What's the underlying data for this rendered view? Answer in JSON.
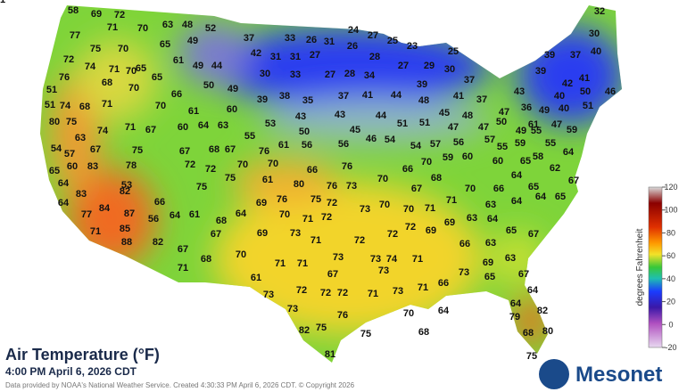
{
  "title": "Air Temperature (°F)",
  "subtitle": "4:00 PM April 6, 2026 CDT",
  "credit": "Data provided by NOAA's National Weather Service. Created 4:30:33 PM April 6, 2026 CDT. © Copyright 2026",
  "logo": "Mesonet",
  "legend": {
    "label": "degrees Fahrenheit",
    "ticks": [
      120,
      100,
      80,
      60,
      40,
      20,
      0,
      -20
    ]
  },
  "stations": [
    58,
    69,
    72,
    63,
    48,
    52,
    24,
    27,
    32,
    77,
    71,
    70,
    65,
    49,
    37,
    33,
    26,
    31,
    26,
    25,
    23,
    30,
    75,
    70,
    72,
    42,
    31,
    31,
    27,
    28,
    25,
    39,
    37,
    40,
    74,
    71,
    65,
    61,
    49,
    44,
    30,
    33,
    27,
    28,
    27,
    29,
    30,
    39,
    41,
    76,
    70,
    65,
    50,
    49,
    34,
    37,
    42,
    39,
    41,
    37,
    51,
    68,
    70,
    66,
    39,
    38,
    35,
    37,
    41,
    44,
    48,
    43,
    40,
    50,
    46,
    51,
    74,
    68,
    71,
    70,
    61,
    60,
    43,
    43,
    44,
    45,
    48,
    47,
    36,
    49,
    40,
    51,
    80,
    75,
    74,
    71,
    67,
    60,
    64,
    63,
    53,
    45,
    51,
    51,
    47,
    47,
    50,
    49,
    55,
    47,
    59,
    63,
    55,
    50,
    46,
    54,
    56,
    57,
    54,
    67,
    75,
    67,
    68,
    67,
    61,
    56,
    56,
    54,
    57,
    55,
    59,
    55,
    61,
    57,
    76,
    70,
    59,
    60,
    60,
    65,
    64,
    58,
    65,
    60,
    83,
    78,
    72,
    72,
    70,
    70,
    66,
    76,
    66,
    64,
    62,
    64,
    75,
    61,
    80,
    76,
    73,
    70,
    68,
    67,
    53,
    75,
    67,
    70,
    66,
    65,
    64,
    83,
    82,
    66,
    69,
    76,
    75,
    72,
    70,
    70,
    71,
    71,
    63,
    64,
    64,
    65,
    77,
    84,
    87,
    56,
    64,
    61,
    68,
    64,
    70,
    71,
    72,
    73,
    69,
    63,
    64,
    65,
    71,
    85,
    67,
    69,
    73,
    71,
    72,
    72,
    72,
    69,
    66,
    63,
    67,
    88,
    82,
    67,
    70,
    73,
    71,
    71,
    73,
    74,
    71,
    69,
    63,
    71,
    68,
    67,
    73,
    73,
    65,
    67,
    61,
    73,
    72,
    72,
    72,
    71,
    73,
    71,
    66,
    64,
    73,
    76,
    70,
    64,
    64,
    82,
    79,
    82,
    75,
    75,
    68,
    68,
    80,
    81,
    75,
    81
  ]
}
